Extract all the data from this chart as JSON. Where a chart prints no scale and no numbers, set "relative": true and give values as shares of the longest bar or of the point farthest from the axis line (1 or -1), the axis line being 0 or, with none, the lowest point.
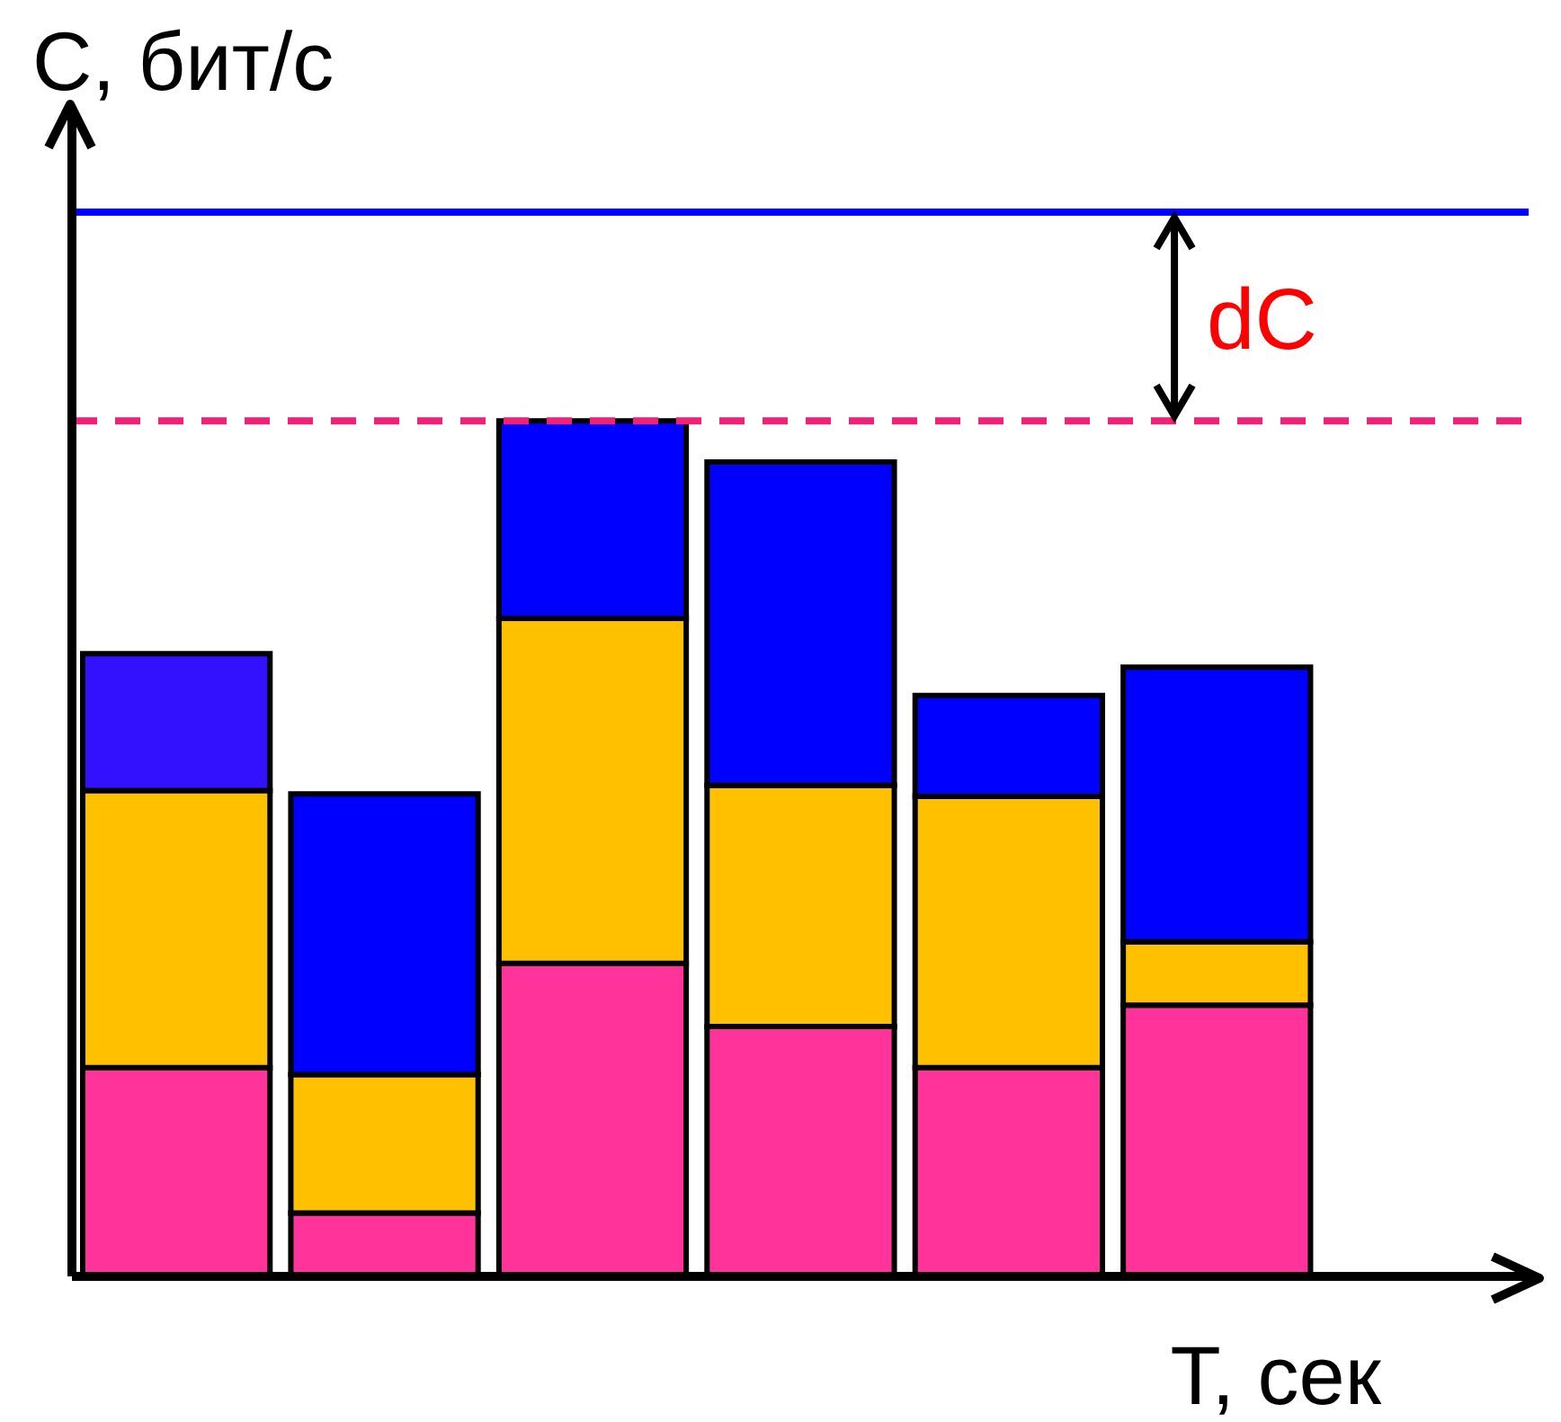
{
  "chart_data": {
    "type": "bar",
    "relative": true,
    "stacked": true,
    "xlabel": "T, сек",
    "ylabel": "C, бит/с",
    "categories": [
      null,
      null,
      null,
      null,
      null,
      null
    ],
    "series": [
      {
        "color": "#ff3399",
        "values": [
          0.244,
          0.074,
          0.366,
          0.292,
          0.244,
          0.317
        ]
      },
      {
        "color": "#ffc000",
        "values": [
          0.324,
          0.162,
          0.403,
          0.282,
          0.317,
          0.074
        ]
      },
      {
        "color": "#0000ff",
        "colors": [
          "#3311ff",
          "#0000ff",
          "#0000ff",
          "#0000ff",
          "#0000ff",
          "#0000ff"
        ],
        "values": [
          0.16,
          0.328,
          0.231,
          0.378,
          0.118,
          0.321
        ]
      }
    ],
    "ref_lines": [
      {
        "axis": "y",
        "value": 1.244,
        "color": "#0000ff",
        "line_style": "solid"
      },
      {
        "axis": "y",
        "value": 1.0,
        "color": "#ee2277",
        "line_style": "dashed"
      }
    ],
    "annotations": [
      "dC"
    ]
  }
}
